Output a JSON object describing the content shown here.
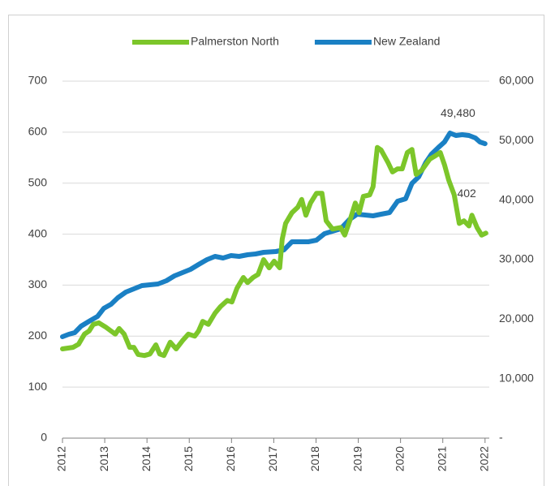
{
  "chart_data": {
    "type": "line",
    "legend": "top",
    "grid": true,
    "xlim": [
      2012,
      2022.1
    ],
    "xticks": [
      2012,
      2013,
      2014,
      2015,
      2016,
      2017,
      2018,
      2019,
      2020,
      2021,
      2022
    ],
    "ylim": [
      0,
      700
    ],
    "yticks": [
      0,
      100,
      200,
      300,
      400,
      500,
      600,
      700
    ],
    "y2lim": [
      0,
      60000
    ],
    "y2ticks": [
      {
        "value": 0,
        "label": "-"
      },
      {
        "value": 10000,
        "label": "10,000"
      },
      {
        "value": 20000,
        "label": "20,000"
      },
      {
        "value": 30000,
        "label": "30,000"
      },
      {
        "value": 40000,
        "label": "40,000"
      },
      {
        "value": 50000,
        "label": "50,000"
      },
      {
        "value": 60000,
        "label": "60,000"
      }
    ],
    "series": [
      {
        "name": "Palmerston North",
        "color": "#7cc62a",
        "x": [
          2012,
          2012.25,
          2012.38,
          2012.52,
          2012.63,
          2012.73,
          2012.86,
          2013.02,
          2013.15,
          2013.25,
          2013.34,
          2013.46,
          2013.59,
          2013.69,
          2013.79,
          2013.94,
          2014.07,
          2014.21,
          2014.3,
          2014.4,
          2014.55,
          2014.69,
          2014.84,
          2014.98,
          2015.13,
          2015.22,
          2015.32,
          2015.45,
          2015.61,
          2015.74,
          2015.9,
          2016.01,
          2016.13,
          2016.28,
          2016.38,
          2016.51,
          2016.63,
          2016.76,
          2016.89,
          2017.01,
          2017.14,
          2017.2,
          2017.28,
          2017.43,
          2017.57,
          2017.66,
          2017.76,
          2017.87,
          2018.01,
          2018.14,
          2018.24,
          2018.39,
          2018.58,
          2018.68,
          2018.81,
          2018.93,
          2019.02,
          2019.12,
          2019.27,
          2019.35,
          2019.45,
          2019.54,
          2019.7,
          2019.81,
          2019.93,
          2020.04,
          2020.16,
          2020.27,
          2020.37,
          2020.5,
          2020.69,
          2020.83,
          2020.94,
          2021.04,
          2021.14,
          2021.27,
          2021.39,
          2021.5,
          2021.62,
          2021.69,
          2021.81,
          2021.92,
          2022.02
        ],
        "values": [
          175,
          178,
          184,
          204,
          210,
          223,
          226,
          218,
          210,
          204,
          215,
          204,
          178,
          178,
          164,
          162,
          165,
          183,
          165,
          162,
          188,
          175,
          191,
          204,
          200,
          210,
          229,
          223,
          245,
          258,
          270,
          267,
          294,
          315,
          305,
          315,
          321,
          350,
          334,
          347,
          334,
          390,
          421,
          442,
          453,
          468,
          437,
          461,
          480,
          480,
          426,
          410,
          413,
          398,
          429,
          461,
          442,
          474,
          477,
          493,
          570,
          565,
          541,
          522,
          528,
          528,
          560,
          566,
          517,
          525,
          547,
          554,
          560,
          536,
          506,
          477,
          421,
          426,
          416,
          437,
          413,
          398,
          402
        ]
      },
      {
        "name": "New Zealand",
        "color": "#1a80c4",
        "axis": "y2",
        "x": [
          2012,
          2012.15,
          2012.29,
          2012.44,
          2012.63,
          2012.83,
          2012.98,
          2013.15,
          2013.31,
          2013.5,
          2013.69,
          2013.88,
          2014.07,
          2014.26,
          2014.46,
          2014.65,
          2014.84,
          2015.03,
          2015.22,
          2015.42,
          2015.61,
          2015.8,
          2015.99,
          2016.18,
          2016.38,
          2016.57,
          2016.76,
          2017.05,
          2017.24,
          2017.43,
          2017.62,
          2017.82,
          2018.01,
          2018.2,
          2018.39,
          2018.58,
          2018.78,
          2018.97,
          2019.16,
          2019.35,
          2019.54,
          2019.74,
          2019.93,
          2020.12,
          2020.27,
          2020.43,
          2020.6,
          2020.73,
          2020.89,
          2021.04,
          2021.17,
          2021.31,
          2021.46,
          2021.62,
          2021.77,
          2021.88,
          2022.0
        ],
        "values": [
          17050,
          17450,
          17730,
          18820,
          19640,
          20450,
          21820,
          22500,
          23590,
          24550,
          25090,
          25640,
          25770,
          25910,
          26450,
          27270,
          27820,
          28360,
          29180,
          30000,
          30550,
          30270,
          30680,
          30550,
          30820,
          30950,
          31230,
          31360,
          31640,
          33000,
          33000,
          33000,
          33270,
          34360,
          34770,
          35180,
          36680,
          37640,
          37500,
          37360,
          37640,
          37910,
          39820,
          40230,
          42820,
          43910,
          46360,
          47730,
          48820,
          49770,
          51270,
          50860,
          51000,
          50860,
          50450,
          49770,
          49480
        ]
      }
    ],
    "annotations": [
      {
        "text": "402"
      },
      {
        "text": "49,480"
      }
    ]
  }
}
